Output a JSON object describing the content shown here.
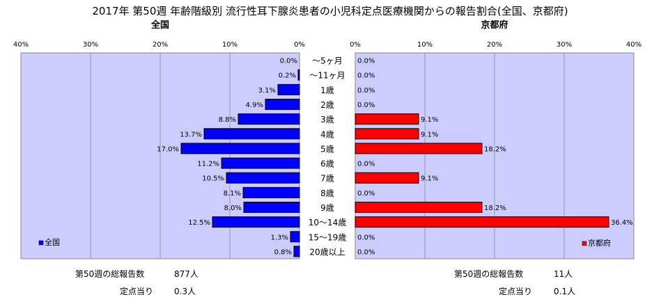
{
  "chart_data": {
    "type": "bar",
    "title": "2017年 第50週 年齢階級別 流行性耳下腺炎患者の小児科定点医療機関からの報告割合(全国、京都府)",
    "categories": [
      "～5ヶ月",
      "～11ヶ月",
      "1歳",
      "2歳",
      "3歳",
      "4歳",
      "5歳",
      "6歳",
      "7歳",
      "8歳",
      "9歳",
      "10～14歳",
      "15～19歳",
      "20歳以上"
    ],
    "xlim": [
      0,
      40
    ],
    "x_ticks": [
      "40%",
      "30%",
      "20%",
      "10%",
      "0%"
    ],
    "x_ticks_right": [
      "0%",
      "10%",
      "20%",
      "30%",
      "40%"
    ],
    "grid": true,
    "series": [
      {
        "name": "全国",
        "panel_title": "全国",
        "color": "#0000ff",
        "direction": "left",
        "values": [
          0.0,
          0.2,
          3.1,
          4.9,
          8.8,
          13.7,
          17.0,
          11.2,
          10.5,
          8.1,
          8.0,
          12.5,
          1.3,
          0.8
        ],
        "labels": [
          "0.0%",
          "0.2%",
          "3.1%",
          "4.9%",
          "8.8%",
          "13.7%",
          "17.0%",
          "11.2%",
          "10.5%",
          "8.1%",
          "8.0%",
          "12.5%",
          "1.3%",
          "0.8%"
        ]
      },
      {
        "name": "京都府",
        "panel_title": "京都府",
        "color": "#ff0000",
        "direction": "right",
        "values": [
          0.0,
          0.0,
          0.0,
          0.0,
          9.1,
          9.1,
          18.2,
          0.0,
          9.1,
          0.0,
          18.2,
          36.4,
          0.0,
          0.0
        ],
        "labels": [
          "0.0%",
          "0.0%",
          "0.0%",
          "0.0%",
          "9.1%",
          "9.1%",
          "18.2%",
          "0.0%",
          "9.1%",
          "0.0%",
          "18.2%",
          "36.4%",
          "0.0%",
          "0.0%"
        ]
      }
    ],
    "legend": {
      "left": "bottom-left",
      "right": "bottom-right"
    }
  },
  "footer": {
    "left": {
      "total_label": "第50週の総報告数",
      "total_value": "877人",
      "per_label": "定点当り",
      "per_value": "0.3人"
    },
    "right": {
      "total_label": "第50週の総報告数",
      "total_value": "11人",
      "per_label": "定点当り",
      "per_value": "0.1人"
    }
  }
}
